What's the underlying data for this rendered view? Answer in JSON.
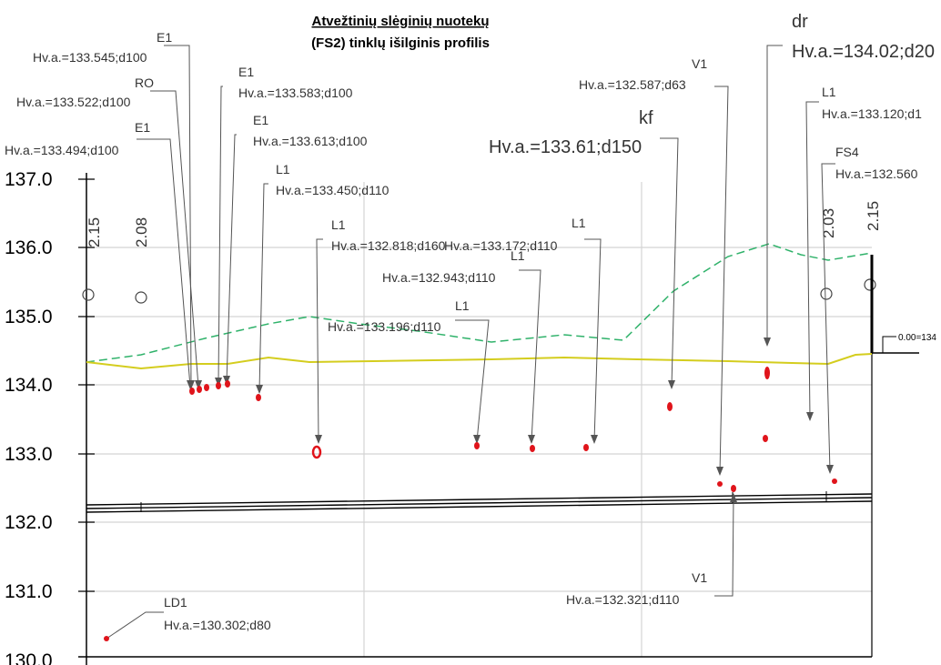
{
  "title": {
    "line1": "Atvežtinių slėginių nuotekų",
    "line2": "(FS2) tinklų išilginis profilis"
  },
  "y_axis": {
    "labels": [
      "137.0",
      "136.0",
      "135.0",
      "134.0",
      "133.0",
      "132.0",
      "131.0",
      "130.0"
    ]
  },
  "vertical_labels": [
    "2.15",
    "2.08",
    "2.03",
    "2.15"
  ],
  "right_label": "0.00=134",
  "annotations": [
    {
      "name": "E1",
      "text": "Hv.a.=133.545;d100"
    },
    {
      "name": "RO",
      "text": "Hv.a.=133.522;d100"
    },
    {
      "name": "E1",
      "text": "Hv.a.=133.494;d100"
    },
    {
      "name": "E1",
      "text": "Hv.a.=133.583;d100"
    },
    {
      "name": "E1",
      "text": "Hv.a.=133.613;d100"
    },
    {
      "name": "L1",
      "text": "Hv.a.=133.450;d110"
    },
    {
      "name": "L1",
      "text": "Hv.a.=132.818;d160"
    },
    {
      "name": "L1",
      "text": "Hv.a.=133.172;d110"
    },
    {
      "name": "L1",
      "text": "Hv.a.=132.943;d110"
    },
    {
      "name": "L1",
      "text": "Hv.a.=133.196;d110"
    },
    {
      "name": "kf",
      "text": "Hv.a.=133.61;d150"
    },
    {
      "name": "V1",
      "text": "Hv.a.=132.587;d63"
    },
    {
      "name": "dr",
      "text": "Hv.a.=134.02;d20"
    },
    {
      "name": "L1",
      "text": "Hv.a.=133.120;d1"
    },
    {
      "name": "FS4",
      "text": "Hv.a.=132.560"
    },
    {
      "name": "V1",
      "text": "Hv.a.=132.321;d110"
    },
    {
      "name": "LD1",
      "text": "Hv.a.=130.302;d80"
    }
  ]
}
